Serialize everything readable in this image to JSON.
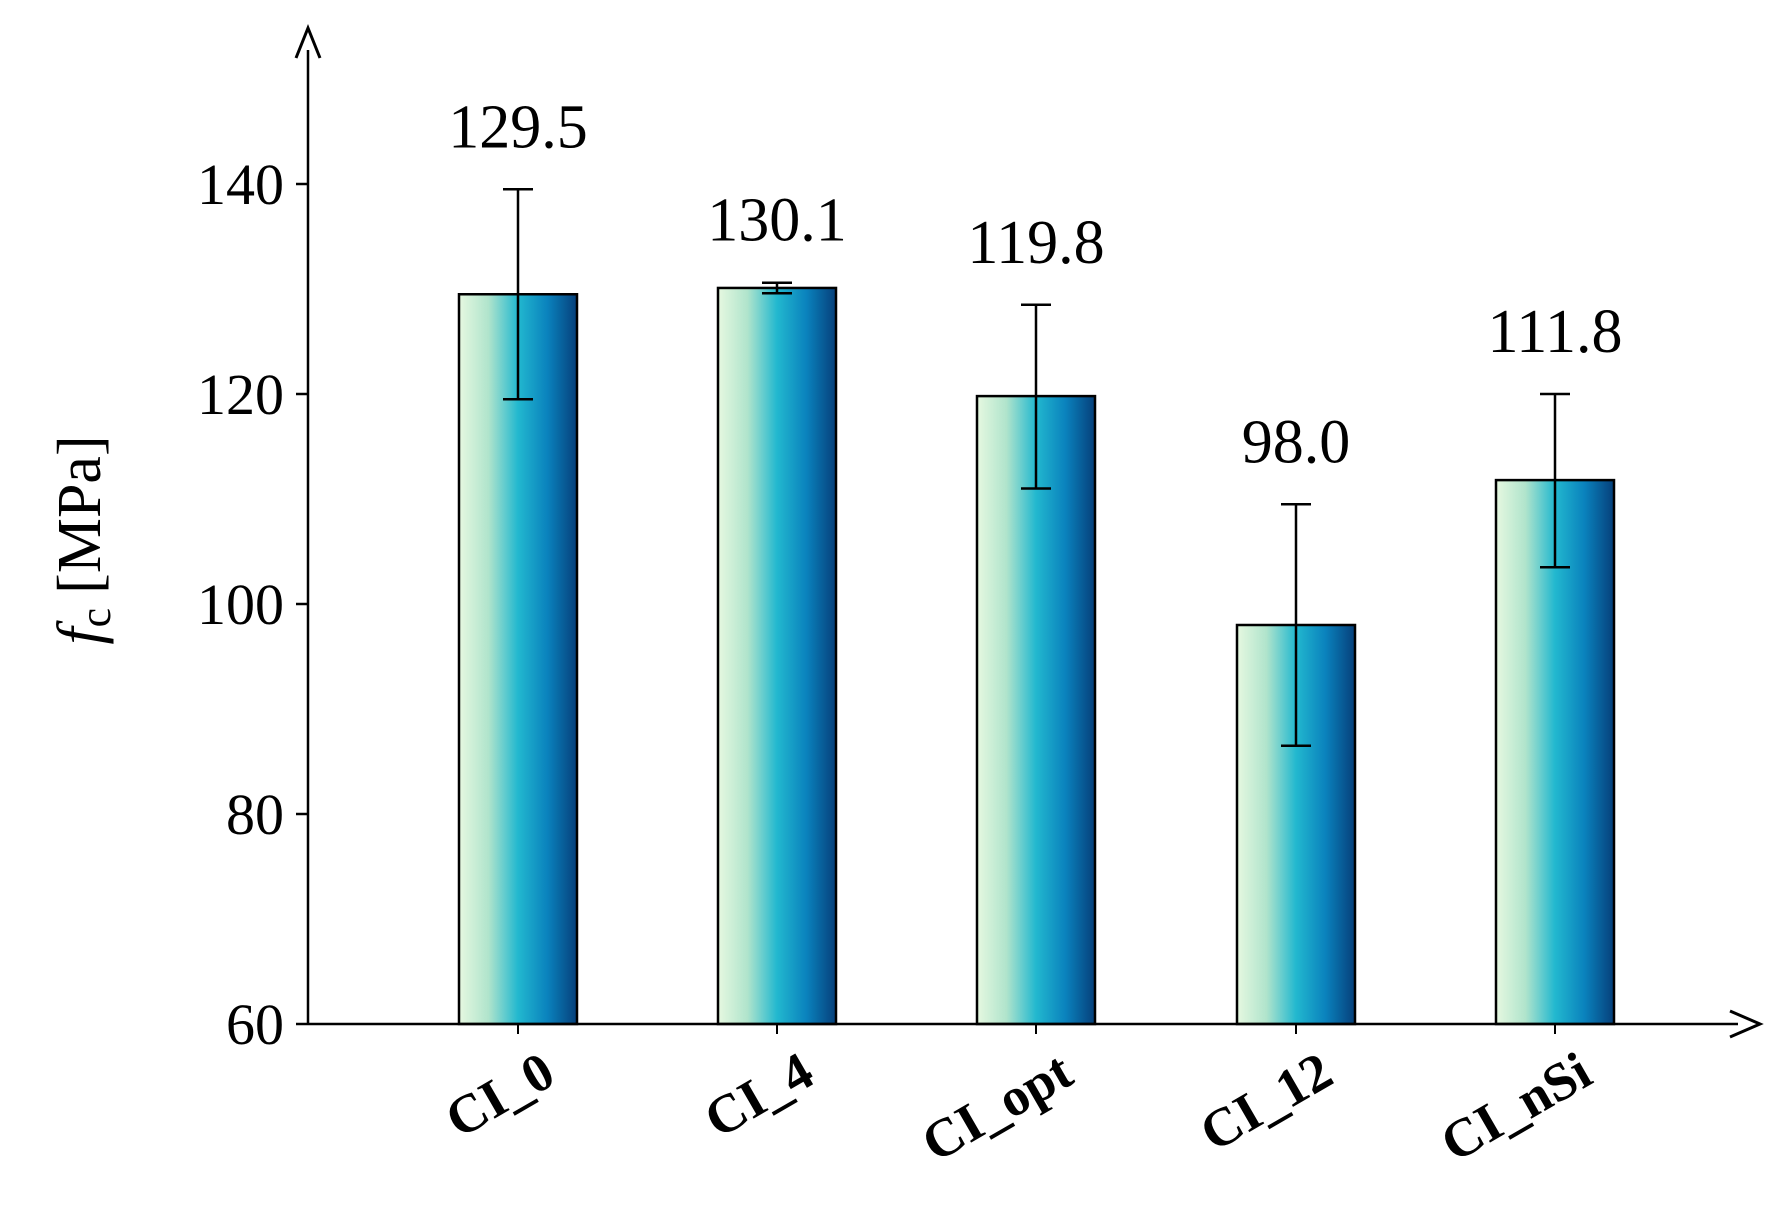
{
  "chart_data": {
    "type": "bar",
    "categories": [
      "CI_0",
      "CI_4",
      "CI_opt",
      "CI_12",
      "CI_nSi"
    ],
    "values": [
      129.5,
      130.1,
      119.8,
      98.0,
      111.8
    ],
    "value_labels": [
      "129.5",
      "130.1",
      "119.8",
      "98.0",
      "111.8"
    ],
    "error_bars": [
      {
        "low": 119.5,
        "high": 139.5
      },
      {
        "low": 129.6,
        "high": 130.6
      },
      {
        "low": 111.0,
        "high": 128.5
      },
      {
        "low": 86.5,
        "high": 109.5
      },
      {
        "low": 103.5,
        "high": 120.0
      }
    ],
    "title": "",
    "xlabel": "",
    "ylabel_symbol": "f",
    "ylabel_subscript": "c",
    "ylabel_unit": "[MPa]",
    "ylim": [
      60,
      150
    ],
    "yticks": [
      "60",
      "80",
      "100",
      "120",
      "140"
    ],
    "grid": false,
    "bar_gradient": [
      "#e6f8e0",
      "#b0e4cc",
      "#22b8cf",
      "#0a82bd",
      "#063f7a"
    ]
  }
}
